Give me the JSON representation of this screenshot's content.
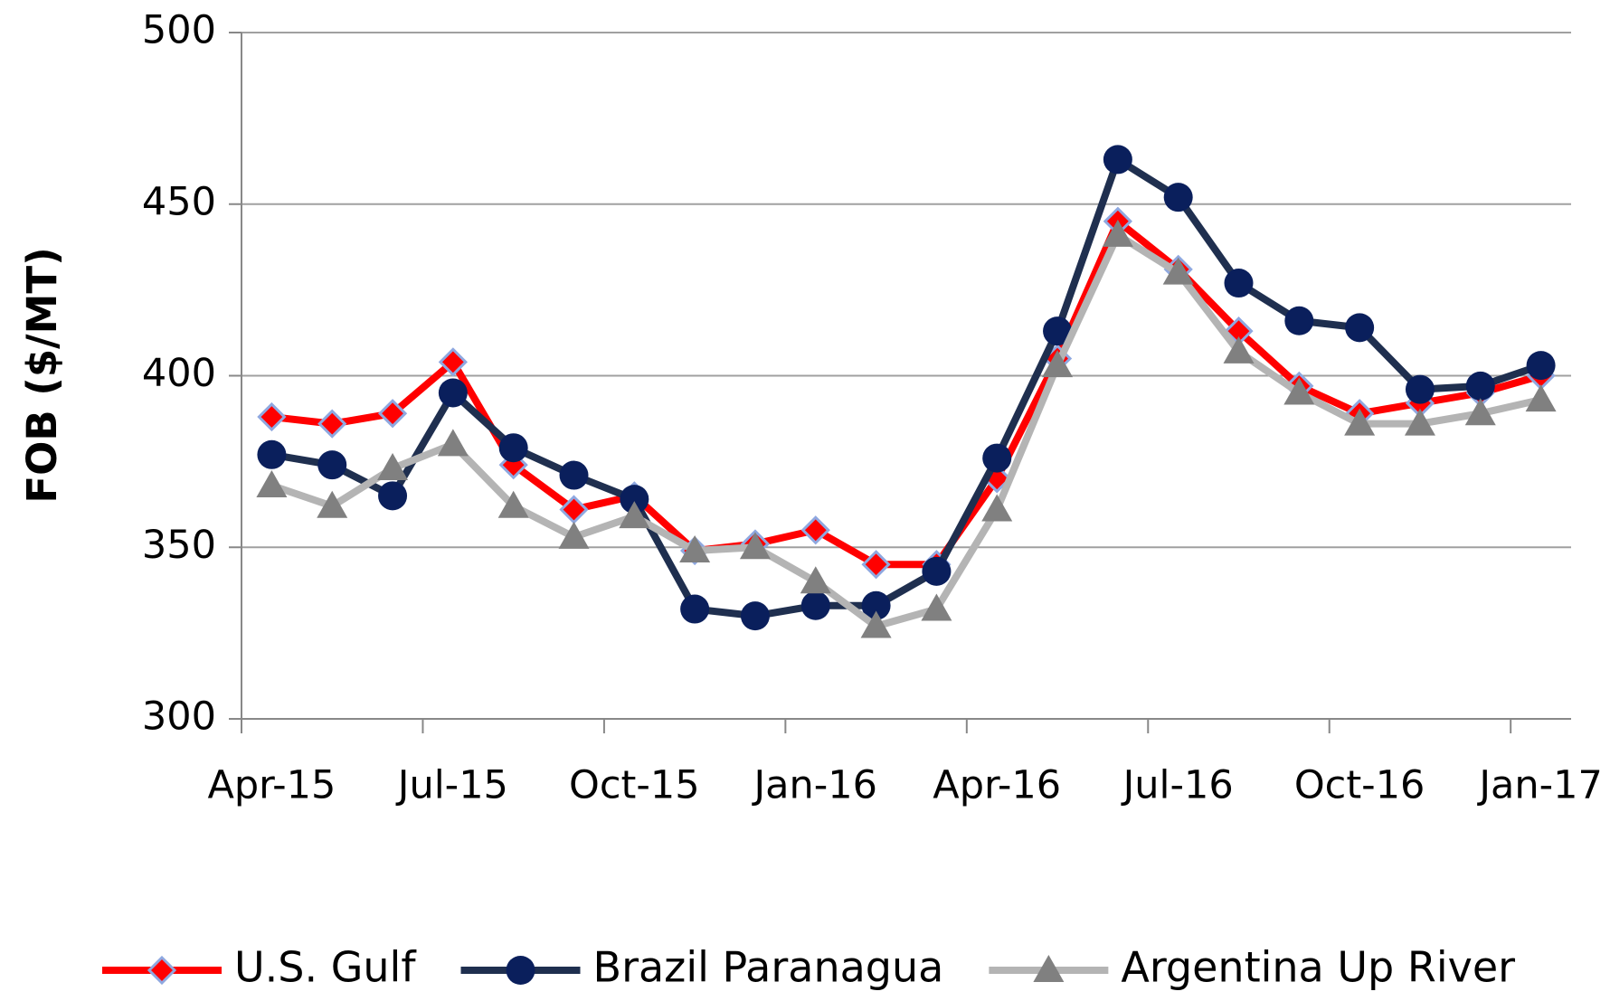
{
  "chart_data": {
    "type": "line",
    "y_label": "FOB ($/MT)",
    "categories": [
      "Apr-15",
      null,
      null,
      "Jul-15",
      null,
      null,
      "Oct-15",
      null,
      null,
      "Jan-16",
      null,
      null,
      "Apr-16",
      null,
      null,
      "Jul-16",
      null,
      null,
      "Oct-16",
      null,
      null,
      "Jan-17"
    ],
    "series": [
      {
        "name": "U.S. Gulf",
        "color": "#ff0000",
        "marker": "diamond",
        "marker_color": "#ff0000",
        "values": [
          388,
          386,
          389,
          404,
          374,
          361,
          365,
          349,
          351,
          355,
          345,
          345,
          370,
          405,
          445,
          431,
          413,
          397,
          389,
          392,
          395,
          400
        ]
      },
      {
        "name": "Brazil Paranagua",
        "color": "#1f2f4f",
        "marker": "circle",
        "marker_color": "#0a1f5c",
        "values": [
          377,
          374,
          365,
          395,
          379,
          371,
          364,
          332,
          330,
          333,
          333,
          343,
          376,
          413,
          463,
          452,
          427,
          416,
          414,
          396,
          397,
          403
        ]
      },
      {
        "name": "Argentina Up River",
        "color": "#b4b4b4",
        "marker": "triangle",
        "marker_color": "#808080",
        "values": [
          368,
          362,
          373,
          380,
          362,
          353,
          359,
          349,
          350,
          340,
          327,
          332,
          361,
          403,
          441,
          430,
          407,
          395,
          386,
          386,
          389,
          393
        ]
      }
    ],
    "ylim": [
      300,
      500
    ],
    "yticks": [
      300,
      350,
      400,
      450,
      500
    ],
    "grid": true,
    "legend": "bottom"
  }
}
